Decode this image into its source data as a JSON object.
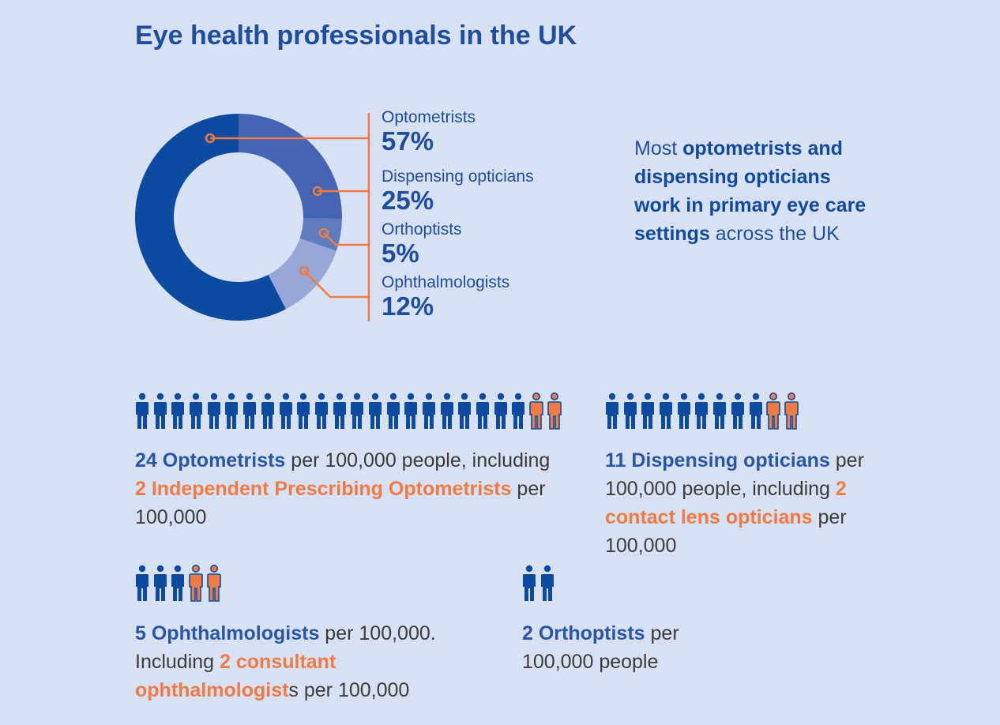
{
  "title": "Eye health professionals in the UK",
  "colors": {
    "dark_blue": "#0d4ba0",
    "mid_blue": "#4465b3",
    "light_blue": "#99a6d8",
    "accent_orange": "#ef7b45",
    "background": "#d8e1f3"
  },
  "chart_data": {
    "type": "pie",
    "variant": "donut",
    "categories": [
      "Optometrists",
      "Dispensing opticians",
      "Orthoptists",
      "Ophthalmologists"
    ],
    "values": [
      57,
      25,
      5,
      12
    ],
    "value_labels": [
      "57%",
      "25%",
      "5%",
      "12%"
    ],
    "legend_placement": "right"
  },
  "side_note": {
    "part1": "Most ",
    "bold": "optometrists and dispensing opticians work in primary eye care settings",
    "part2": " across the UK"
  },
  "groups": [
    {
      "id": "optometrists",
      "total_icons": 24,
      "highlighted_icons": 2,
      "segments": [
        {
          "text": "24 Optometrists",
          "style": "blue"
        },
        {
          "text": " per 100,000 people, including ",
          "style": "plain"
        },
        {
          "text": "2 Independent Prescribing Optometrists",
          "style": "orange"
        },
        {
          "text": " per 100,000",
          "style": "plain"
        }
      ]
    },
    {
      "id": "dispensing",
      "total_icons": 11,
      "highlighted_icons": 2,
      "segments": [
        {
          "text": "11 Dispensing opticians",
          "style": "blue"
        },
        {
          "text": " per 100,000 people, including ",
          "style": "plain"
        },
        {
          "text": "2 contact lens opticians",
          "style": "orange"
        },
        {
          "text": " per 100,000",
          "style": "plain"
        }
      ]
    },
    {
      "id": "ophthalmologists",
      "total_icons": 5,
      "highlighted_icons": 2,
      "segments": [
        {
          "text": "5 Ophthalmologists",
          "style": "blue"
        },
        {
          "text": " per 100,000. Including ",
          "style": "plain"
        },
        {
          "text": "2 consultant ophthalmologist",
          "style": "orange"
        },
        {
          "text": "s per 100,000",
          "style": "plain"
        }
      ]
    },
    {
      "id": "orthoptists",
      "total_icons": 2,
      "highlighted_icons": 0,
      "segments": [
        {
          "text": "2 Orthoptists",
          "style": "blue"
        },
        {
          "text": " per 100,000 people",
          "style": "plain"
        }
      ]
    }
  ]
}
